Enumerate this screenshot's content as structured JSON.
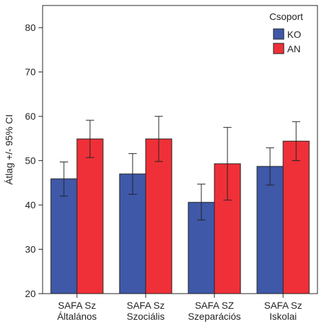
{
  "chart_data": {
    "type": "bar",
    "categories": [
      [
        "SAFA Sz",
        "Általános"
      ],
      [
        "SAFA Sz",
        "Szociális"
      ],
      [
        "SAFA SZ",
        "Szeparációs"
      ],
      [
        "SAFA Sz",
        "Iskolai"
      ]
    ],
    "series": [
      {
        "name": "KO",
        "color": "#3f58a8",
        "values": [
          45.9,
          47.0,
          40.6,
          48.7
        ],
        "ci_low": [
          42.0,
          42.4,
          36.6,
          44.5
        ],
        "ci_high": [
          49.7,
          51.6,
          44.7,
          52.9
        ]
      },
      {
        "name": "AN",
        "color": "#ef3038",
        "values": [
          54.9,
          54.9,
          49.3,
          54.4
        ],
        "ci_low": [
          50.7,
          49.8,
          41.1,
          50.0
        ],
        "ci_high": [
          59.1,
          60.0,
          57.5,
          58.8
        ]
      }
    ],
    "ylabel": "Átlag +/- 95% CI",
    "ylim": [
      20,
      85
    ],
    "yticks": [
      20,
      30,
      40,
      50,
      60,
      70,
      80
    ],
    "legend": {
      "title": "Csoport",
      "placement": "top-right"
    },
    "grid": false,
    "error_bars": true
  }
}
